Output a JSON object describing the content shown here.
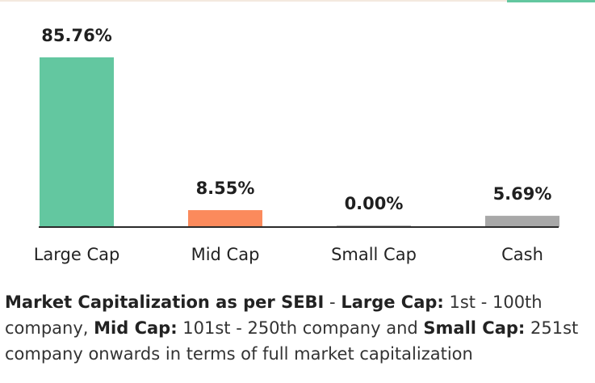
{
  "chart_data": {
    "type": "bar",
    "categories": [
      "Large Cap",
      "Mid Cap",
      "Small Cap",
      "Cash"
    ],
    "values": [
      85.76,
      8.55,
      0.0,
      5.69
    ],
    "data_labels": [
      "85.76%",
      "8.55%",
      "0.00%",
      "5.69%"
    ],
    "colors": [
      "#63c7a0",
      "#fb8a5c",
      "#b3b3b3",
      "#a8a8a8"
    ],
    "title": "",
    "xlabel": "",
    "ylabel": "",
    "ylim": [
      0,
      85.76
    ],
    "grid": false,
    "legend": "none"
  },
  "footnote": {
    "bold_1": "Market Capitalization as per SEBI",
    "text_1": " - ",
    "bold_2": "Large Cap:",
    "text_2": " 1st - 100th company, ",
    "bold_3": "Mid Cap:",
    "text_3": " 101st - 250th company and ",
    "bold_4": "Small Cap:",
    "text_4": " 251st company onwards in terms of full market capitalization"
  }
}
